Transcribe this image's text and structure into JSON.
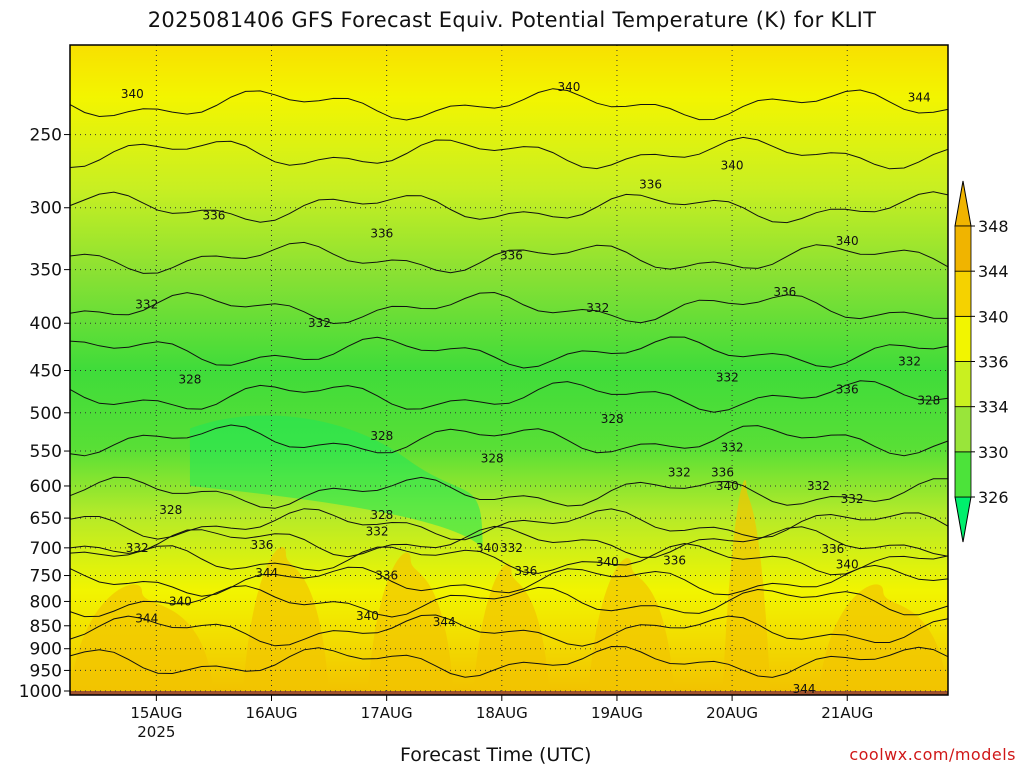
{
  "chart_data": {
    "type": "heatmap",
    "title": "2025081406 GFS Forecast Equiv. Potential Temperature (K) for KLIT",
    "xlabel": "Forecast Time (UTC)",
    "ylabel": "",
    "credit": "coolwx.com/models",
    "y_scale": "log-pressure (hPa, inverted)",
    "y_range": [
      1010,
      200
    ],
    "y_ticks": [
      250,
      300,
      350,
      400,
      450,
      500,
      550,
      600,
      650,
      700,
      750,
      800,
      850,
      900,
      950,
      1000
    ],
    "x_range": [
      "2025-08-14 06Z",
      "2025-08-21 21Z"
    ],
    "x_ticks": [
      {
        "label": "15AUG",
        "sublabel": "2025",
        "time": "2025-08-15 00Z"
      },
      {
        "label": "16AUG",
        "sublabel": "",
        "time": "2025-08-16 00Z"
      },
      {
        "label": "17AUG",
        "sublabel": "",
        "time": "2025-08-17 00Z"
      },
      {
        "label": "18AUG",
        "sublabel": "",
        "time": "2025-08-18 00Z"
      },
      {
        "label": "19AUG",
        "sublabel": "",
        "time": "2025-08-19 00Z"
      },
      {
        "label": "20AUG",
        "sublabel": "",
        "time": "2025-08-20 00Z"
      },
      {
        "label": "21AUG",
        "sublabel": "",
        "time": "2025-08-21 00Z"
      }
    ],
    "grid": true,
    "colorbar": {
      "position": "right",
      "levels": [
        326,
        330,
        334,
        336,
        340,
        344,
        348
      ],
      "colors": [
        "#00ef6c",
        "#4ce33a",
        "#99e53a",
        "#c9f020",
        "#f2f500",
        "#f5d200",
        "#f0b400"
      ]
    },
    "contour_labels": [
      {
        "text": "340",
        "time": "2025-08-14 19Z",
        "p": 226
      },
      {
        "text": "340",
        "time": "2025-08-18 14Z",
        "p": 222
      },
      {
        "text": "344",
        "time": "2025-08-21 15Z",
        "p": 228
      },
      {
        "text": "340",
        "time": "2025-08-20 00Z",
        "p": 270
      },
      {
        "text": "336",
        "time": "2025-08-19 07Z",
        "p": 283
      },
      {
        "text": "336",
        "time": "2025-08-15 12Z",
        "p": 306
      },
      {
        "text": "336",
        "time": "2025-08-16 23Z",
        "p": 320
      },
      {
        "text": "336",
        "time": "2025-08-18 02Z",
        "p": 338
      },
      {
        "text": "340",
        "time": "2025-08-21 00Z",
        "p": 326
      },
      {
        "text": "336",
        "time": "2025-08-20 11Z",
        "p": 370
      },
      {
        "text": "332",
        "time": "2025-08-14 22Z",
        "p": 382
      },
      {
        "text": "332",
        "time": "2025-08-16 10Z",
        "p": 400
      },
      {
        "text": "332",
        "time": "2025-08-18 20Z",
        "p": 385
      },
      {
        "text": "332",
        "time": "2025-08-21 13Z",
        "p": 440
      },
      {
        "text": "336",
        "time": "2025-08-21 00Z",
        "p": 472
      },
      {
        "text": "332",
        "time": "2025-08-19 23Z",
        "p": 458
      },
      {
        "text": "328",
        "time": "2025-08-15 07Z",
        "p": 460
      },
      {
        "text": "328",
        "time": "2025-08-21 17Z",
        "p": 485
      },
      {
        "text": "328",
        "time": "2025-08-18 23Z",
        "p": 508
      },
      {
        "text": "328",
        "time": "2025-08-16 23Z",
        "p": 530
      },
      {
        "text": "332",
        "time": "2025-08-20 00Z",
        "p": 545
      },
      {
        "text": "328",
        "time": "2025-08-17 22Z",
        "p": 560
      },
      {
        "text": "332",
        "time": "2025-08-19 13Z",
        "p": 580
      },
      {
        "text": "336",
        "time": "2025-08-19 22Z",
        "p": 580
      },
      {
        "text": "340",
        "time": "2025-08-19 23Z",
        "p": 600
      },
      {
        "text": "332",
        "time": "2025-08-20 18Z",
        "p": 600
      },
      {
        "text": "332",
        "time": "2025-08-21 01Z",
        "p": 620
      },
      {
        "text": "328",
        "time": "2025-08-15 03Z",
        "p": 637
      },
      {
        "text": "328",
        "time": "2025-08-16 23Z",
        "p": 645
      },
      {
        "text": "332",
        "time": "2025-08-16 22Z",
        "p": 672
      },
      {
        "text": "336",
        "time": "2025-08-15 22Z",
        "p": 695
      },
      {
        "text": "332",
        "time": "2025-08-14 20Z",
        "p": 700
      },
      {
        "text": "340",
        "time": "2025-08-17 21Z",
        "p": 700
      },
      {
        "text": "332",
        "time": "2025-08-18 02Z",
        "p": 700
      },
      {
        "text": "336",
        "time": "2025-08-20 21Z",
        "p": 702
      },
      {
        "text": "336",
        "time": "2025-08-19 12Z",
        "p": 722
      },
      {
        "text": "340",
        "time": "2025-08-18 22Z",
        "p": 725
      },
      {
        "text": "340",
        "time": "2025-08-21 00Z",
        "p": 730
      },
      {
        "text": "336",
        "time": "2025-08-18 05Z",
        "p": 742
      },
      {
        "text": "344",
        "time": "2025-08-15 23Z",
        "p": 745
      },
      {
        "text": "336",
        "time": "2025-08-17 00Z",
        "p": 750
      },
      {
        "text": "340",
        "time": "2025-08-15 05Z",
        "p": 800
      },
      {
        "text": "340",
        "time": "2025-08-16 20Z",
        "p": 830
      },
      {
        "text": "344",
        "time": "2025-08-17 12Z",
        "p": 842
      },
      {
        "text": "344",
        "time": "2025-08-14 22Z",
        "p": 835
      },
      {
        "text": "344",
        "time": "2025-08-20 15Z",
        "p": 995
      }
    ]
  }
}
